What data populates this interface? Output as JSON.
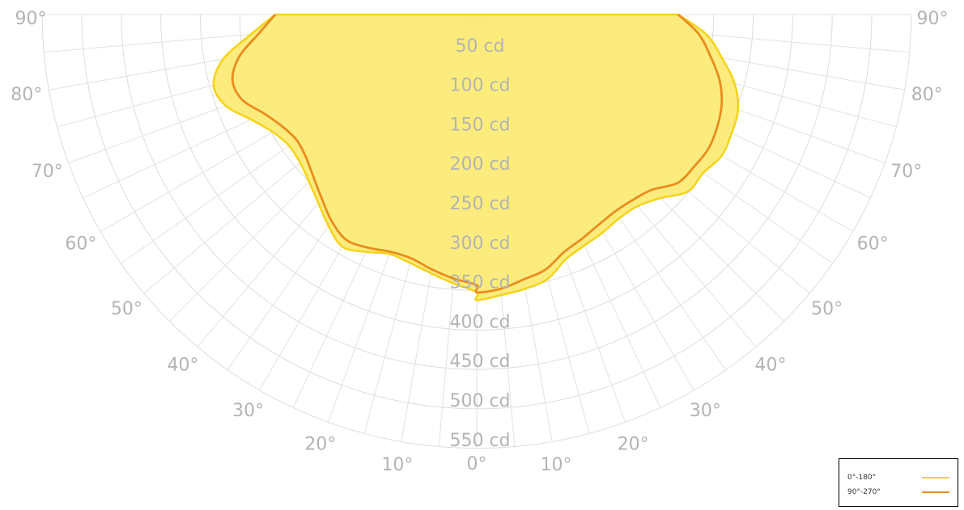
{
  "chart_data": {
    "type": "polar",
    "title": "",
    "radial_axis": {
      "unit": "cd",
      "max": 550,
      "ring_labels": [
        "50 cd",
        "100 cd",
        "150 cd",
        "200 cd",
        "250 cd",
        "300 cd",
        "350 cd",
        "400 cd",
        "450 cd",
        "500 cd",
        "550 cd"
      ]
    },
    "angular_axis": {
      "left_labels": [
        "0°",
        "10°",
        "20°",
        "30°",
        "40°",
        "50°",
        "60°",
        "70°",
        "80°",
        "90°"
      ],
      "right_labels": [
        "10°",
        "20°",
        "30°",
        "40°",
        "50°",
        "60°",
        "70°",
        "80°",
        "90°"
      ]
    },
    "angles": [
      0,
      5,
      10,
      15,
      20,
      25,
      30,
      35,
      40,
      45,
      50,
      55,
      60,
      65,
      70,
      75,
      80,
      85,
      90
    ],
    "series": [
      {
        "name": "0°-180°",
        "color": "#f5d31a",
        "fill": "#fcea72",
        "left": [
          352,
          342,
          333,
          326,
          323,
          332,
          340,
          327,
          312,
          300,
          292,
          290,
          298,
          315,
          338,
          345,
          326,
          287,
          255
        ],
        "right": [
          362,
          357,
          353,
          347,
          330,
          323,
          319,
          315,
          317,
          329,
          349,
          350,
          358,
          356,
          352,
          338,
          315,
          292,
          255
        ]
      },
      {
        "name": "90°-270°",
        "color": "#ea8c1f",
        "left": [
          343,
          336,
          328,
          320,
          320,
          326,
          330,
          320,
          305,
          292,
          282,
          278,
          284,
          297,
          316,
          320,
          305,
          277,
          255
        ],
        "right": [
          352,
          349,
          341,
          335,
          321,
          314,
          308,
          305,
          307,
          314,
          332,
          336,
          339,
          336,
          330,
          318,
          300,
          282,
          255
        ]
      }
    ]
  }
}
